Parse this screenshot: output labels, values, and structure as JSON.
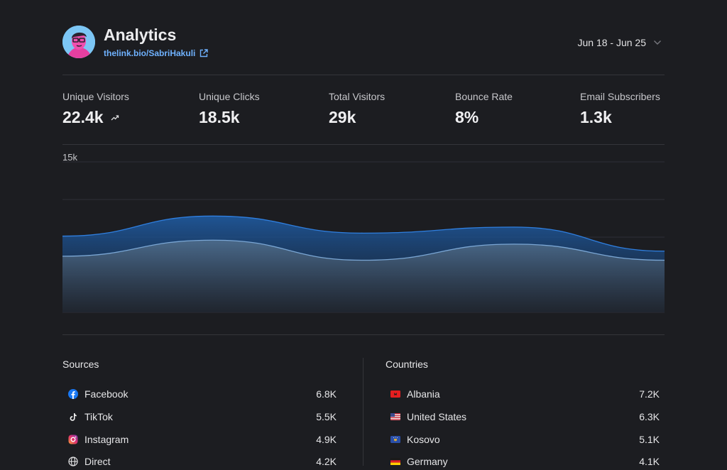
{
  "header": {
    "title": "Analytics",
    "link": "thelink.bio/SabriHakuli",
    "date_range": "Jun 18 - Jun 25"
  },
  "stats": [
    {
      "label": "Unique Visitors",
      "value": "22.4k",
      "trend": "up"
    },
    {
      "label": "Unique Clicks",
      "value": "18.5k"
    },
    {
      "label": "Total Visitors",
      "value": "29k"
    },
    {
      "label": "Bounce Rate",
      "value": "8%"
    },
    {
      "label": "Email Subscribers",
      "value": "1.3k"
    }
  ],
  "chart_data": {
    "type": "area",
    "y_label": "15k",
    "grid": true,
    "series": [
      {
        "values": [
          7.6,
          9.6,
          7.9,
          8.5,
          6.1
        ],
        "color": "#2f7fe0"
      },
      {
        "values": [
          5.6,
          7.2,
          5.2,
          6.8,
          5.2
        ],
        "color": "#7aa6d4"
      }
    ]
  },
  "sources": {
    "title": "Sources",
    "items": [
      {
        "label": "Facebook",
        "value": "6.8K",
        "icon": "facebook-icon"
      },
      {
        "label": "TikTok",
        "value": "5.5K",
        "icon": "tiktok-icon"
      },
      {
        "label": "Instagram",
        "value": "4.9K",
        "icon": "instagram-icon"
      },
      {
        "label": "Direct",
        "value": "4.2K",
        "icon": "globe-icon"
      }
    ]
  },
  "countries": {
    "title": "Countries",
    "items": [
      {
        "label": "Albania",
        "value": "7.2K",
        "icon": "albania-flag-icon"
      },
      {
        "label": "United States",
        "value": "6.3K",
        "icon": "usa-flag-icon"
      },
      {
        "label": "Kosovo",
        "value": "5.1K",
        "icon": "kosovo-flag-icon"
      },
      {
        "label": "Germany",
        "value": "4.1K",
        "icon": "germany-flag-icon"
      }
    ]
  },
  "colors": {
    "background": "#1c1d21",
    "accent": "#6fb2ff",
    "series_primary": "#2f7fe0"
  }
}
